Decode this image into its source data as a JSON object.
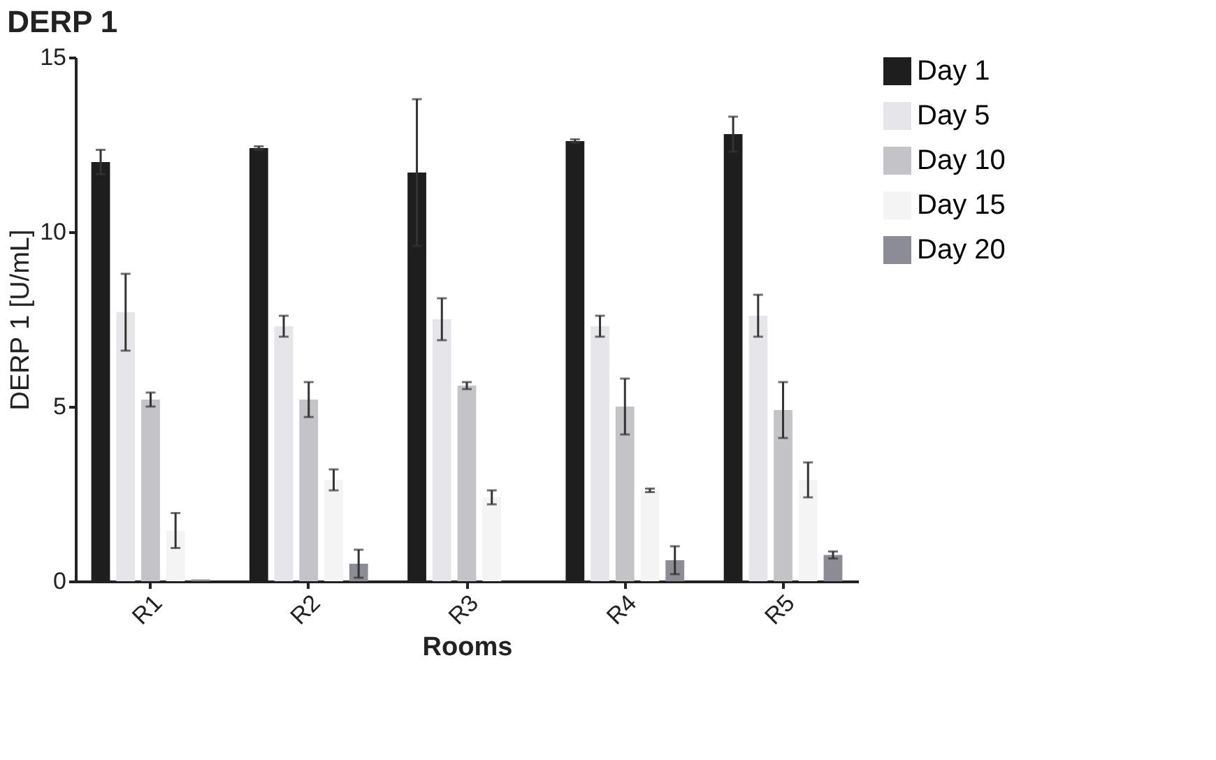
{
  "chart_data": {
    "type": "bar",
    "title": "DERP 1",
    "xlabel": "Rooms",
    "ylabel": "DERP 1 [U/mL]",
    "categories": [
      "R1",
      "R2",
      "R3",
      "R4",
      "R5"
    ],
    "series": [
      {
        "name": "Day 1",
        "color": "#1e1e1e",
        "values": [
          12.0,
          12.4,
          11.7,
          12.6,
          12.8
        ],
        "errors": [
          0.35,
          0.05,
          2.1,
          0.05,
          0.5
        ]
      },
      {
        "name": "Day 5",
        "color": "#e6e6ea",
        "values": [
          7.7,
          7.3,
          7.5,
          7.3,
          7.6
        ],
        "errors": [
          1.1,
          0.3,
          0.6,
          0.3,
          0.6
        ]
      },
      {
        "name": "Day 10",
        "color": "#c4c4c8",
        "values": [
          5.2,
          5.2,
          5.6,
          5.0,
          4.9
        ],
        "errors": [
          0.2,
          0.5,
          0.1,
          0.8,
          0.8
        ]
      },
      {
        "name": "Day 15",
        "color": "#f4f4f4",
        "values": [
          1.45,
          2.9,
          2.4,
          2.6,
          2.9
        ],
        "errors": [
          0.5,
          0.3,
          0.2,
          0.05,
          0.5
        ]
      },
      {
        "name": "Day 20",
        "color": "#8c8c94",
        "values": [
          0.05,
          0.5,
          null,
          0.6,
          0.75
        ],
        "errors": [
          null,
          0.4,
          null,
          0.4,
          0.1
        ]
      }
    ],
    "ylim": [
      0,
      15
    ],
    "yticks": [
      0,
      5,
      10,
      15
    ],
    "grid": false,
    "legend": "right"
  }
}
